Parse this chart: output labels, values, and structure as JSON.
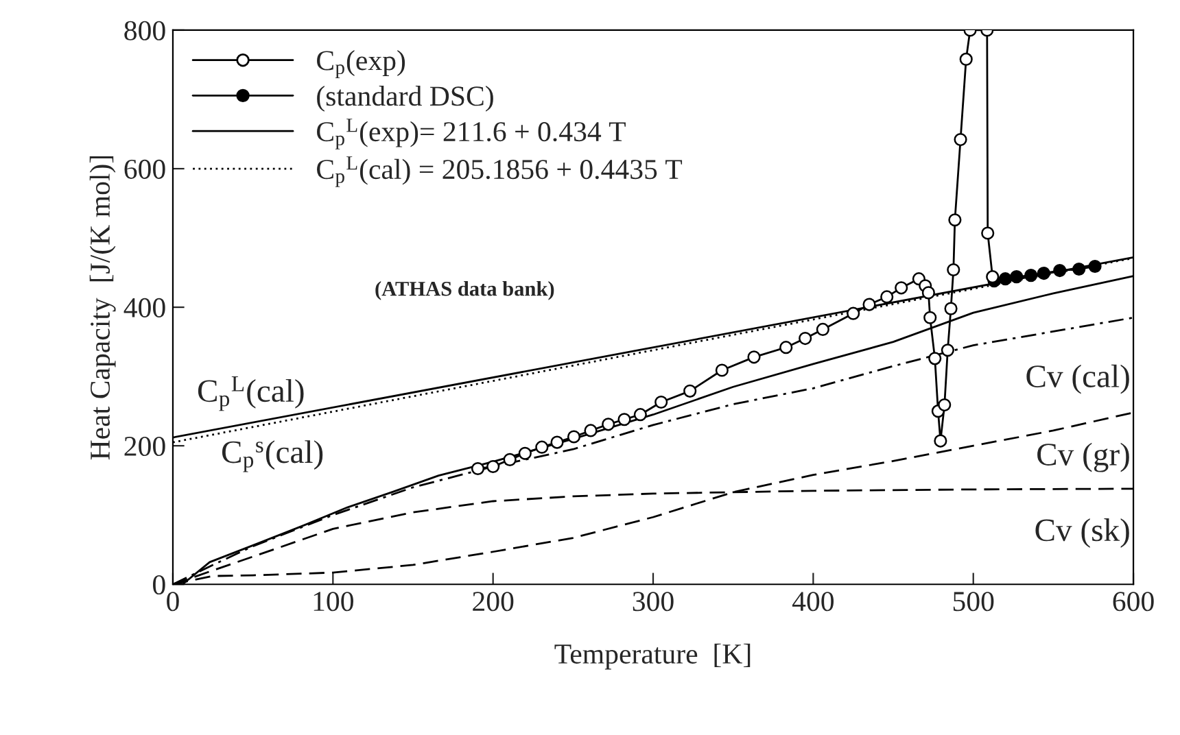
{
  "chart_data": {
    "type": "line",
    "xlabel": "Temperature  [K]",
    "ylabel": "Heat Capacity  [J/(K mol)]",
    "xlim": [
      0,
      600
    ],
    "ylim": [
      0,
      800
    ],
    "xticks": [
      0,
      100,
      200,
      300,
      400,
      500,
      600
    ],
    "yticks": [
      0,
      200,
      400,
      600,
      800
    ],
    "grid": false,
    "legend": "top left",
    "series": [
      {
        "name": "C$_{p}$(exp)",
        "color": "#000000",
        "marker": "circle",
        "line_style": "solid",
        "x": [
          190.5,
          200,
          210.5,
          220,
          230.5,
          240,
          250.5,
          261,
          272,
          282,
          292,
          305,
          323,
          343,
          363,
          383,
          395,
          406,
          425,
          435,
          446,
          455,
          466,
          470,
          472,
          473,
          476,
          478,
          479.5,
          482,
          484,
          486,
          487.6,
          488.5,
          492,
          495.5,
          498,
          508.6,
          509,
          512
        ],
        "values": [
          167,
          170,
          180,
          189,
          198,
          205,
          213,
          222,
          231,
          238,
          245,
          263,
          279,
          309,
          328,
          342,
          355,
          368,
          391,
          404,
          415,
          428,
          441,
          431,
          421,
          385,
          326,
          250,
          207,
          259,
          338,
          398,
          454,
          526,
          642,
          758,
          800,
          800,
          507,
          444
        ]
      },
      {
        "name": "(standard DSC)",
        "color": "#000000",
        "marker": "circle",
        "line_style": "solid",
        "x": [
          513,
          520,
          527,
          536,
          544,
          554,
          566,
          576
        ],
        "values": [
          438,
          441,
          444,
          446,
          449,
          453,
          455,
          459
        ]
      },
      {
        "name": "C$_{p}$$^{L}$(exp)= 211.6 + 0.434 T",
        "color": "#000000",
        "marker": "none",
        "line_style": "solid",
        "x": [
          0,
          600
        ],
        "values": [
          212,
          472
        ]
      },
      {
        "name": "C$_{p}$$^{L}$(cal) = 205.1856 + 0.4435 T",
        "color": "#000000",
        "marker": "none",
        "line_style": "dotted",
        "x": [
          0,
          600
        ],
        "values": [
          205,
          471
        ]
      },
      {
        "color": "#000000",
        "marker": "none",
        "line_style": "solid",
        "x": [
          0,
          6,
          23,
          52,
          80.6,
          109,
          138,
          166,
          200,
          250,
          300,
          350,
          400,
          450,
          500,
          550,
          600
        ],
        "values": [
          0,
          0,
          32,
          58,
          84,
          111,
          134,
          157,
          177,
          210,
          245,
          285,
          318,
          350,
          392,
          420,
          445
        ]
      },
      {
        "color": "#000000",
        "marker": "none",
        "line_style": "dashdot",
        "x": [
          0,
          25,
          50,
          100,
          150,
          200,
          250,
          300,
          350,
          400,
          450,
          500,
          550,
          600
        ],
        "values": [
          0,
          28,
          55,
          100,
          140,
          170,
          195,
          230,
          260,
          283,
          315,
          345,
          365,
          385
        ]
      },
      {
        "color": "#000000",
        "marker": "none",
        "line_style": "dashed",
        "x": [
          0,
          25,
          50,
          100,
          150,
          200,
          250,
          300,
          350,
          400,
          450,
          500,
          550,
          600
        ],
        "values": [
          0,
          12,
          13,
          17,
          28,
          47,
          67,
          97,
          133,
          158,
          178,
          200,
          222,
          248
        ]
      },
      {
        "color": "#000000",
        "marker": "none",
        "line_style": "dashed",
        "x": [
          0,
          25,
          50,
          100,
          150,
          200,
          250,
          300,
          400,
          500,
          600
        ],
        "values": [
          0,
          20,
          40,
          80,
          104,
          120,
          127,
          131,
          135,
          137,
          138
        ]
      }
    ],
    "annotations": [
      "(ATHAS data bank)",
      "C$_{p}$$^{L}$(cal)",
      "C$_{p}$$^{s}$(cal)",
      "Cv (cal)",
      "Cv (gr)",
      "Cv (sk)"
    ]
  }
}
